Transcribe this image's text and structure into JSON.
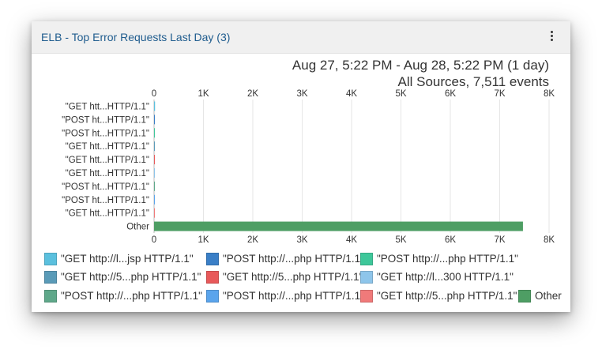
{
  "panel": {
    "title": "ELB - Top Error Requests Last Day (3)",
    "menu_icon": "kebab-menu-icon"
  },
  "header": {
    "time_range": "Aug 27, 5:22 PM - Aug 28, 5:22 PM  (1 day)",
    "sources": "All Sources, 7,511 events"
  },
  "chart_data": {
    "type": "bar",
    "orientation": "horizontal",
    "categories": [
      "\"GET htt...HTTP/1.1\"",
      "\"POST ht...HTTP/1.1\"",
      "\"POST ht...HTTP/1.1\"",
      "\"GET htt...HTTP/1.1\"",
      "\"GET htt...HTTP/1.1\"",
      "\"GET htt...HTTP/1.1\"",
      "\"POST ht...HTTP/1.1\"",
      "\"POST ht...HTTP/1.1\"",
      "\"GET htt...HTTP/1.1\"",
      "Other"
    ],
    "values": [
      20,
      4,
      3,
      3,
      2,
      2,
      2,
      2,
      2,
      7471
    ],
    "xlim": [
      0,
      8000
    ],
    "xticks": [
      "0",
      "1K",
      "2K",
      "3K",
      "4K",
      "5K",
      "6K",
      "7K",
      "8K"
    ],
    "grid": true,
    "colors": [
      "#5bc0de",
      "#3a7fc7",
      "#3ec79a",
      "#5a9bb8",
      "#e8595a",
      "#8ec5ea",
      "#5fa88a",
      "#5aa4ec",
      "#f07a7a",
      "#4e9e64"
    ]
  },
  "legend": {
    "rows": [
      [
        {
          "label": "\"GET http://l...jsp HTTP/1.1\"",
          "color": "#5bc0de"
        },
        {
          "label": "\"POST http://...php HTTP/1.1\"",
          "color": "#3a7fc7"
        },
        {
          "label": "\"POST http://...php HTTP/1.1\"",
          "color": "#3ec79a"
        }
      ],
      [
        {
          "label": "\"GET http://5...php HTTP/1.1\"",
          "color": "#5a9bb8"
        },
        {
          "label": "\"GET http://5...php HTTP/1.1\"",
          "color": "#e8595a"
        },
        {
          "label": "\"GET http://l...300 HTTP/1.1\"",
          "color": "#8ec5ea"
        }
      ],
      [
        {
          "label": "\"POST http://...php HTTP/1.1\"",
          "color": "#5fa88a"
        },
        {
          "label": "\"POST http://...php HTTP/1.1\"",
          "color": "#5aa4ec"
        },
        {
          "label": "\"GET http://5...php HTTP/1.1\"",
          "color": "#f07a7a"
        },
        {
          "label": "Other",
          "color": "#4e9e64"
        }
      ]
    ]
  }
}
